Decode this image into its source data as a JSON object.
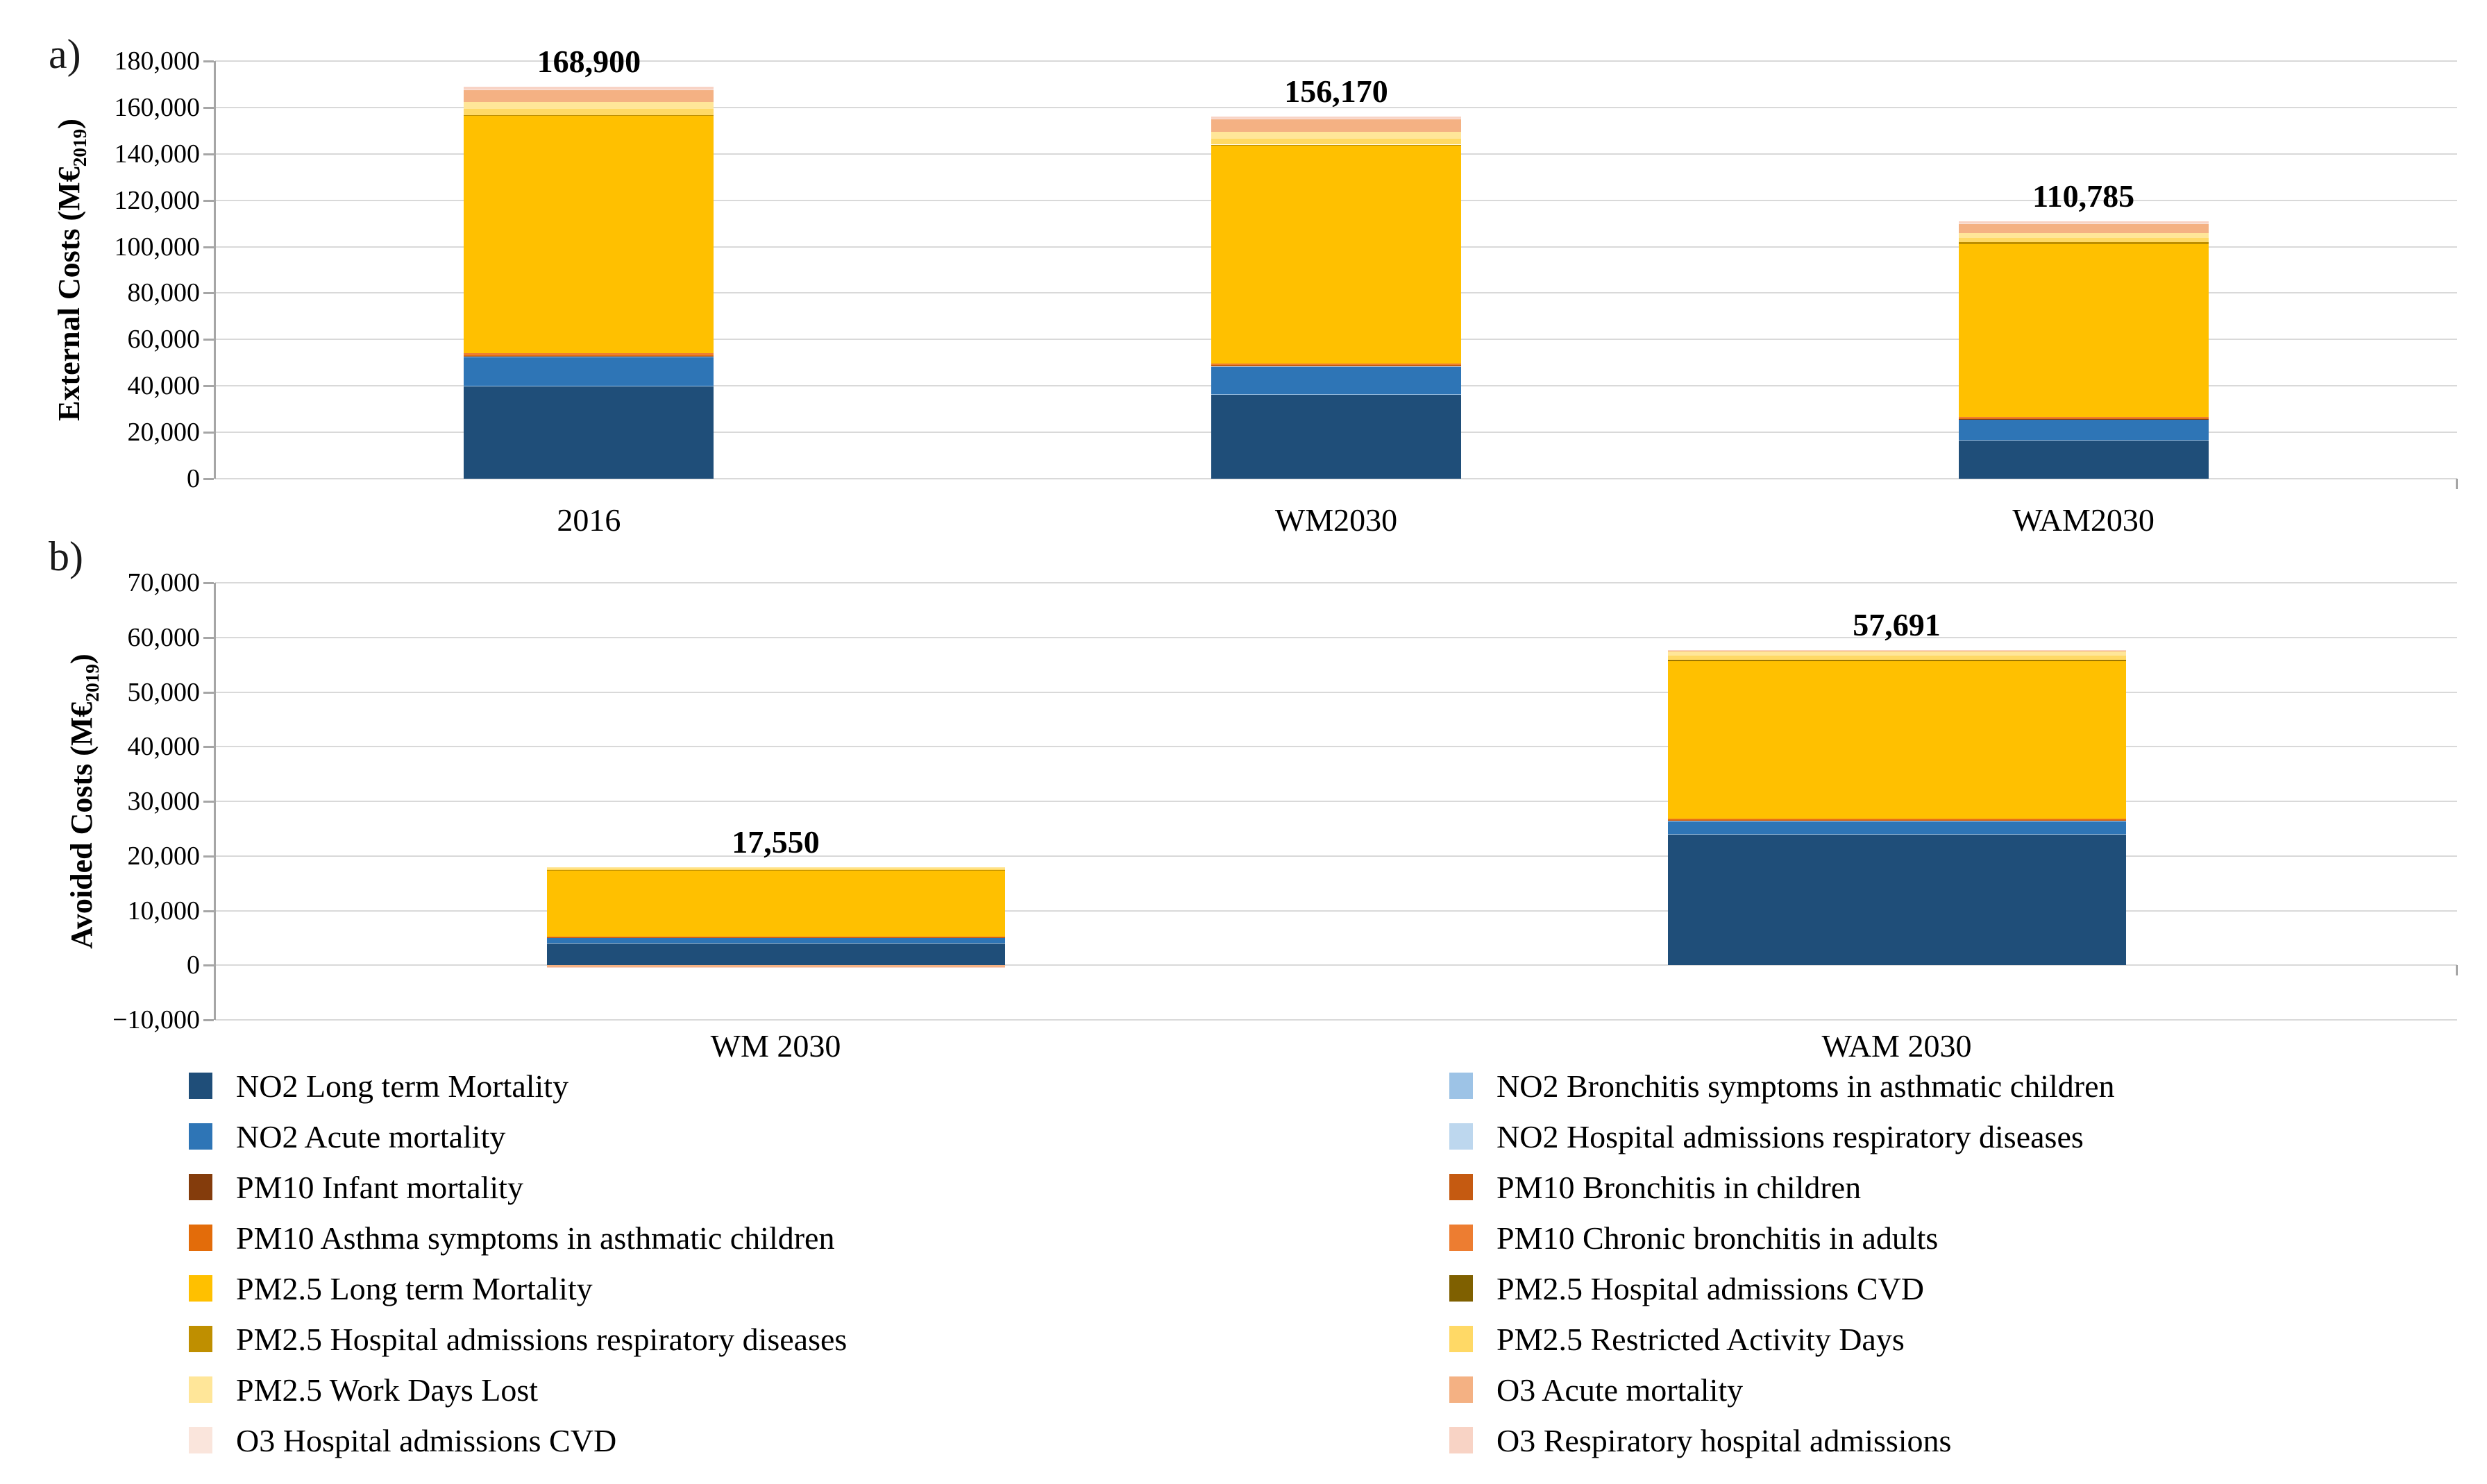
{
  "figure": {
    "panel_a_label": "a)",
    "panel_b_label": "b)"
  },
  "chart_data": [
    {
      "id": "a",
      "type": "bar",
      "stacked": true,
      "panel_label": "a)",
      "ylabel": {
        "prefix": "External Costs (M€",
        "sub": "2019",
        "suffix": ")"
      },
      "ylim": [
        0,
        180000
      ],
      "ytick_step": 20000,
      "ytick_labels": [
        "180,000",
        "160,000",
        "140,000",
        "120,000",
        "100,000",
        "80,000",
        "60,000",
        "40,000",
        "20,000",
        "0"
      ],
      "categories": [
        "2016",
        "WM2030",
        "WAM2030"
      ],
      "totals": [
        168900,
        156170,
        110785
      ],
      "total_labels": [
        "168,900",
        "156,170",
        "110,785"
      ],
      "grid": true,
      "legend_position": "bottom",
      "series": [
        {
          "name": "NO2 Long term Mortality",
          "color": "#1F4E79",
          "values": [
            40000,
            36500,
            16600
          ]
        },
        {
          "name": "NO2 Bronchitis symptoms in asthmatic children",
          "color": "#9DC3E6",
          "values": [
            120,
            110,
            80
          ]
        },
        {
          "name": "NO2 Acute mortality",
          "color": "#2E75B6",
          "values": [
            12400,
            11800,
            8900
          ]
        },
        {
          "name": "NO2 Hospital admissions respiratory diseases",
          "color": "#BDD7EE",
          "values": [
            180,
            160,
            120
          ]
        },
        {
          "name": "PM10 Infant mortality",
          "color": "#843C0C",
          "values": [
            120,
            110,
            90
          ]
        },
        {
          "name": "PM10 Bronchitis in children",
          "color": "#C55A11",
          "values": [
            260,
            240,
            200
          ]
        },
        {
          "name": "PM10 Asthma symptoms in asthmatic children",
          "color": "#E36C0A",
          "values": [
            170,
            150,
            120
          ]
        },
        {
          "name": "PM10 Chronic bronchitis in adults",
          "color": "#ED7D31",
          "values": [
            750,
            700,
            590
          ]
        },
        {
          "name": "PM2.5 Long term Mortality",
          "color": "#FFC000",
          "values": [
            102400,
            93920,
            74890
          ]
        },
        {
          "name": "PM2.5 Hospital admissions CVD",
          "color": "#7F6000",
          "values": [
            160,
            150,
            120
          ]
        },
        {
          "name": "PM2.5 Hospital admissions respiratory diseases",
          "color": "#BF8F00",
          "values": [
            140,
            130,
            105
          ]
        },
        {
          "name": "PM2.5 Restricted Activity Days",
          "color": "#FFD966",
          "values": [
            2600,
            2500,
            1800
          ]
        },
        {
          "name": "PM2.5 Work Days Lost",
          "color": "#FFE699",
          "values": [
            3200,
            3000,
            2200
          ]
        },
        {
          "name": "O3 Acute mortality",
          "color": "#F4B183",
          "values": [
            5000,
            5300,
            3900
          ]
        },
        {
          "name": "O3 Hospital admissions CVD",
          "color": "#FAE5DC",
          "values": [
            300,
            300,
            250
          ]
        },
        {
          "name": "O3 Respiratory hospital admissions",
          "color": "#F8D3C5",
          "values": [
            1100,
            1100,
            820
          ]
        }
      ]
    },
    {
      "id": "b",
      "type": "bar",
      "stacked": true,
      "panel_label": "b)",
      "ylabel": {
        "prefix": "Avoided Costs (M€",
        "sub": "2019",
        "suffix": ")"
      },
      "ylim": [
        -10000,
        70000
      ],
      "ytick_step": 10000,
      "ytick_labels": [
        "70,000",
        "60,000",
        "50,000",
        "40,000",
        "30,000",
        "20,000",
        "10,000",
        "0",
        "−10,000"
      ],
      "categories": [
        "WM 2030",
        "WAM 2030"
      ],
      "totals": [
        17550,
        57691
      ],
      "total_labels": [
        "17,550",
        "57,691"
      ],
      "grid": true,
      "legend_position": "bottom",
      "series": [
        {
          "name": "NO2 Long term Mortality",
          "color": "#1F4E79",
          "values": [
            4100,
            24000
          ]
        },
        {
          "name": "NO2 Bronchitis symptoms in asthmatic children",
          "color": "#9DC3E6",
          "values": [
            10,
            40
          ]
        },
        {
          "name": "NO2 Acute mortality",
          "color": "#2E75B6",
          "values": [
            1000,
            2400
          ]
        },
        {
          "name": "NO2 Hospital admissions respiratory diseases",
          "color": "#BDD7EE",
          "values": [
            20,
            60
          ]
        },
        {
          "name": "PM10 Infant mortality",
          "color": "#843C0C",
          "values": [
            10,
            30
          ]
        },
        {
          "name": "PM10 Bronchitis in children",
          "color": "#C55A11",
          "values": [
            20,
            60
          ]
        },
        {
          "name": "PM10 Asthma symptoms in asthmatic children",
          "color": "#E36C0A",
          "values": [
            20,
            50
          ]
        },
        {
          "name": "PM10 Chronic bronchitis in adults",
          "color": "#ED7D31",
          "values": [
            50,
            160
          ]
        },
        {
          "name": "PM2.5 Long term Mortality",
          "color": "#FFC000",
          "values": [
            12200,
            28991
          ]
        },
        {
          "name": "PM2.5 Hospital admissions CVD",
          "color": "#7F6000",
          "values": [
            10,
            40
          ]
        },
        {
          "name": "PM2.5 Hospital admissions respiratory diseases",
          "color": "#BF8F00",
          "values": [
            10,
            35
          ]
        },
        {
          "name": "PM2.5 Restricted Activity Days",
          "color": "#FFD966",
          "values": [
            200,
            800
          ]
        },
        {
          "name": "PM2.5 Work Days Lost",
          "color": "#FFE699",
          "values": [
            300,
            800
          ]
        },
        {
          "name": "O3 Acute mortality",
          "color": "#F4B183",
          "values": [
            -300,
            150
          ]
        },
        {
          "name": "O3 Hospital admissions CVD",
          "color": "#FAE5DC",
          "values": [
            -30,
            25
          ]
        },
        {
          "name": "O3 Respiratory hospital admissions",
          "color": "#F8D3C5",
          "values": [
            -70,
            50
          ]
        }
      ]
    }
  ]
}
